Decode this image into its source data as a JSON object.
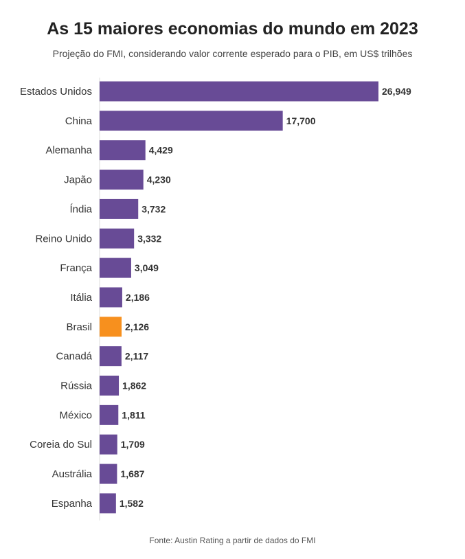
{
  "chart_data": {
    "type": "bar",
    "orientation": "horizontal",
    "title": "As 15 maiores economias do mundo em 2023",
    "subtitle": "Projeção do FMI, considerando valor corrente esperado para o PIB, em US$ trilhões",
    "categories": [
      "Estados Unidos",
      "China",
      "Alemanha",
      "Japão",
      "Índia",
      "Reino Unido",
      "França",
      "Itália",
      "Brasil",
      "Canadá",
      "Rússia",
      "México",
      "Coreia do Sul",
      "Austrália",
      "Espanha"
    ],
    "values": [
      26.949,
      17.7,
      4.429,
      4.23,
      3.732,
      3.332,
      3.049,
      2.186,
      2.126,
      2.117,
      1.862,
      1.811,
      1.709,
      1.687,
      1.582
    ],
    "value_labels": [
      "26,949",
      "17,700",
      "4,429",
      "4,230",
      "3,732",
      "3,332",
      "3,049",
      "2,186",
      "2,126",
      "2,117",
      "1,862",
      "1,811",
      "1,709",
      "1,687",
      "1,582"
    ],
    "highlight_category": "Brasil",
    "xlim": [
      0,
      26.949
    ],
    "grid": false,
    "source": "Fonte: Austin Rating a partir de dados do FMI"
  },
  "colors": {
    "bar": "#684b96",
    "highlight": "#f7901e",
    "axis_line": "#dddddd"
  }
}
